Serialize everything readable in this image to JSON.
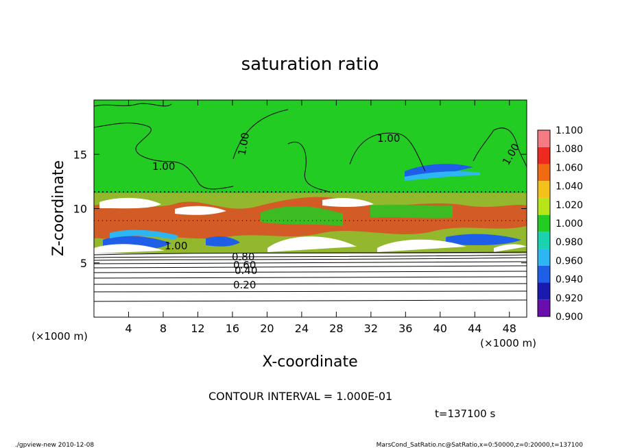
{
  "chart_data": {
    "type": "heatmap",
    "title": "saturation ratio",
    "xlabel": "X-coordinate",
    "ylabel": "Z-coordinate",
    "x_unit": "(×1000 m)",
    "y_unit": "(×1000 m)",
    "xlim": [
      0,
      50
    ],
    "ylim": [
      0,
      20
    ],
    "x_ticks": [
      "4",
      "8",
      "12",
      "16",
      "20",
      "24",
      "28",
      "32",
      "36",
      "40",
      "44",
      "48"
    ],
    "y_ticks": [
      "5",
      "10",
      "15"
    ],
    "colorbar": {
      "levels": [
        "0.900",
        "0.920",
        "0.940",
        "0.960",
        "0.980",
        "1.000",
        "1.020",
        "1.040",
        "1.060",
        "1.080",
        "1.100"
      ],
      "colors": [
        "#6a0dad",
        "#1a1ab0",
        "#1f5fe8",
        "#2eb6f2",
        "#19d2b0",
        "#22cc22",
        "#b6e61a",
        "#f2c21a",
        "#f06a14",
        "#ee2a20",
        "#f47a84"
      ]
    },
    "contour_labels": [
      "1.00",
      "1.00",
      "1.00",
      "1.00",
      "1.00",
      "0.80",
      "0.60",
      "0.40",
      "0.20"
    ],
    "contour_interval": "CONTOUR INTERVAL = 1.000E-01",
    "time_label": "t=137100 s",
    "footer_left": "./gpview-new   2010-12-08",
    "footer_right": "MarsCond_SatRatio.nc@SatRatio,x=0:50000,z=0:20000,t=137100"
  }
}
